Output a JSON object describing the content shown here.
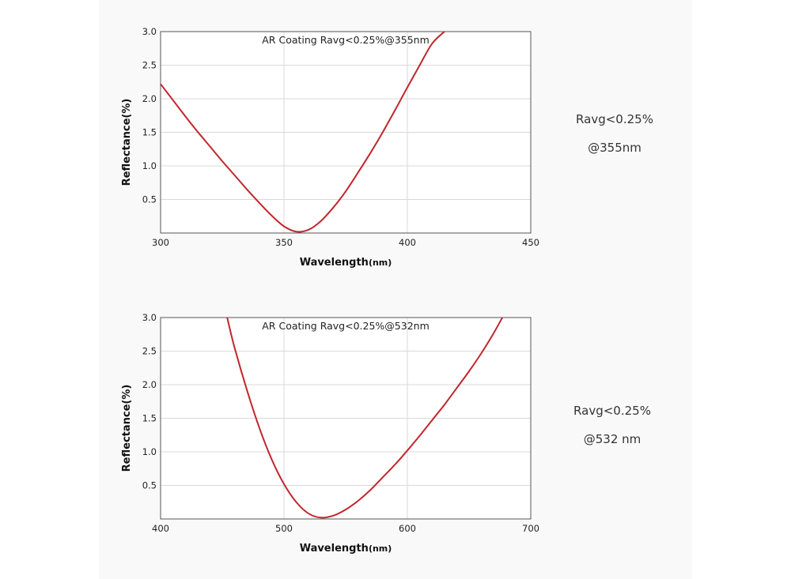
{
  "chart_data": [
    {
      "type": "line",
      "annotation": "AR Coating Ravg<0.25%@355nm",
      "xlabel": "Wavelength",
      "xlabel_unit": "(nm)",
      "ylabel": "Reflectance(%)",
      "xlim": [
        300,
        450
      ],
      "ylim": [
        0,
        3.0
      ],
      "x_ticks": [
        "300",
        "350",
        "400",
        "450"
      ],
      "y_ticks": [
        "0.5",
        "1.0",
        "1.5",
        "2.0",
        "2.5",
        "3.0"
      ],
      "grid": true,
      "series_color": "#c0272d",
      "series": [
        {
          "x": [
            300,
            305,
            310,
            315,
            320,
            325,
            330,
            335,
            340,
            345,
            350,
            355,
            360,
            365,
            370,
            375,
            380,
            385,
            390,
            395,
            400,
            405,
            410,
            415
          ],
          "y": [
            2.22,
            1.98,
            1.74,
            1.51,
            1.29,
            1.07,
            0.86,
            0.65,
            0.45,
            0.26,
            0.1,
            0.02,
            0.05,
            0.18,
            0.38,
            0.62,
            0.9,
            1.19,
            1.5,
            1.83,
            2.17,
            2.5,
            2.82,
            3.0
          ]
        }
      ]
    },
    {
      "type": "line",
      "annotation": "AR Coating Ravg<0.25%@532nm",
      "xlabel": "Wavelength",
      "xlabel_unit": "(nm)",
      "ylabel": "Reflectance(%)",
      "xlim": [
        400,
        700
      ],
      "ylim": [
        0,
        3.0
      ],
      "x_ticks": [
        "400",
        "500",
        "600",
        "700"
      ],
      "y_ticks": [
        "0.5",
        "1.0",
        "1.5",
        "2.0",
        "2.5",
        "3.0"
      ],
      "grid": true,
      "series_color": "#c0272d",
      "series": [
        {
          "x": [
            454,
            460,
            470,
            480,
            490,
            500,
            510,
            520,
            530,
            540,
            550,
            560,
            570,
            580,
            590,
            600,
            610,
            620,
            630,
            640,
            650,
            660,
            670,
            677
          ],
          "y": [
            3.0,
            2.55,
            1.92,
            1.36,
            0.89,
            0.52,
            0.25,
            0.08,
            0.02,
            0.05,
            0.14,
            0.27,
            0.43,
            0.62,
            0.81,
            1.02,
            1.24,
            1.47,
            1.7,
            1.95,
            2.2,
            2.47,
            2.77,
            3.0
          ]
        }
      ]
    }
  ],
  "side_notes": [
    {
      "line1": "Ravg<0.25%",
      "line2": "@355nm"
    },
    {
      "line1": "Ravg<0.25%",
      "line2": "@532 nm"
    }
  ]
}
